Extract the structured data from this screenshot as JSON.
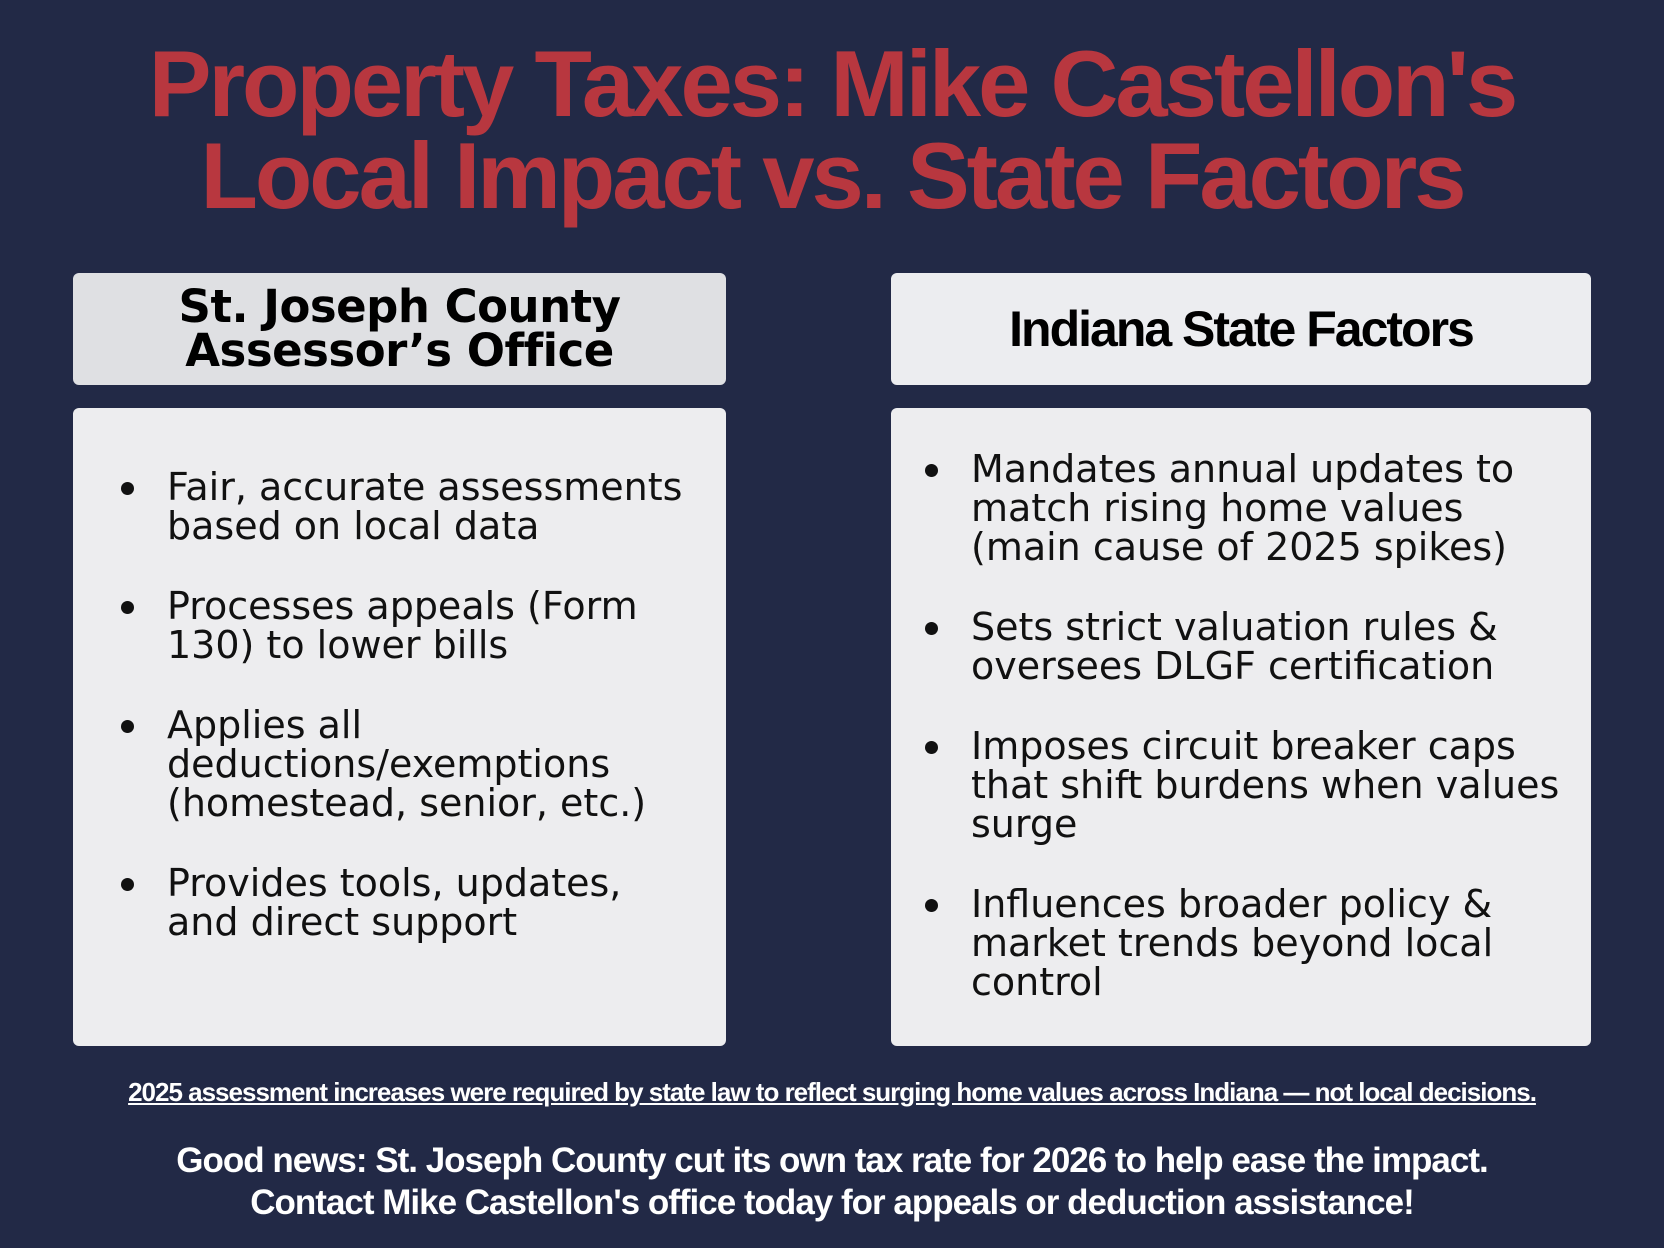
{
  "title": {
    "line1": "Property Taxes: Mike Castellon's",
    "line2": "Local Impact vs. State Factors"
  },
  "left": {
    "header": {
      "line1": "St. Joseph County",
      "line2": "Assessor’s Office"
    },
    "items": [
      {
        "lines": [
          "Fair, accurate assessments",
          "based on local data"
        ]
      },
      {
        "lines": [
          "Processes appeals (Form",
          "130) to lower bills"
        ]
      },
      {
        "lines": [
          "Applies all",
          "deductions/exemptions",
          "(homestead, senior, etc.)"
        ]
      },
      {
        "lines": [
          "Provides tools, updates,",
          "and direct support"
        ]
      }
    ]
  },
  "right": {
    "header": "Indiana State Factors",
    "items": [
      {
        "lines": [
          "Mandates annual updates to",
          "match rising home values",
          "(main cause of 2025 spikes)"
        ]
      },
      {
        "lines": [
          "Sets strict valuation rules &",
          "oversees DLGF certification"
        ]
      },
      {
        "lines": [
          "Imposes circuit breaker caps",
          "that shift burdens when values",
          "surge"
        ]
      },
      {
        "lines": [
          "Influences broader policy &",
          "market trends beyond local",
          "control"
        ]
      }
    ]
  },
  "note": "2025 assessment increases were required by state law to reflect surging home values across Indiana — not local decisions.",
  "goodnews": {
    "line1": "Good news: St. Joseph County cut its own tax rate for 2026 to help ease the impact.",
    "line2": "Contact Mike Castellon's office today for appeals or deduction assistance!"
  },
  "colors": {
    "background": "#222946",
    "title": "#b8373f",
    "panel": "#ededef"
  }
}
